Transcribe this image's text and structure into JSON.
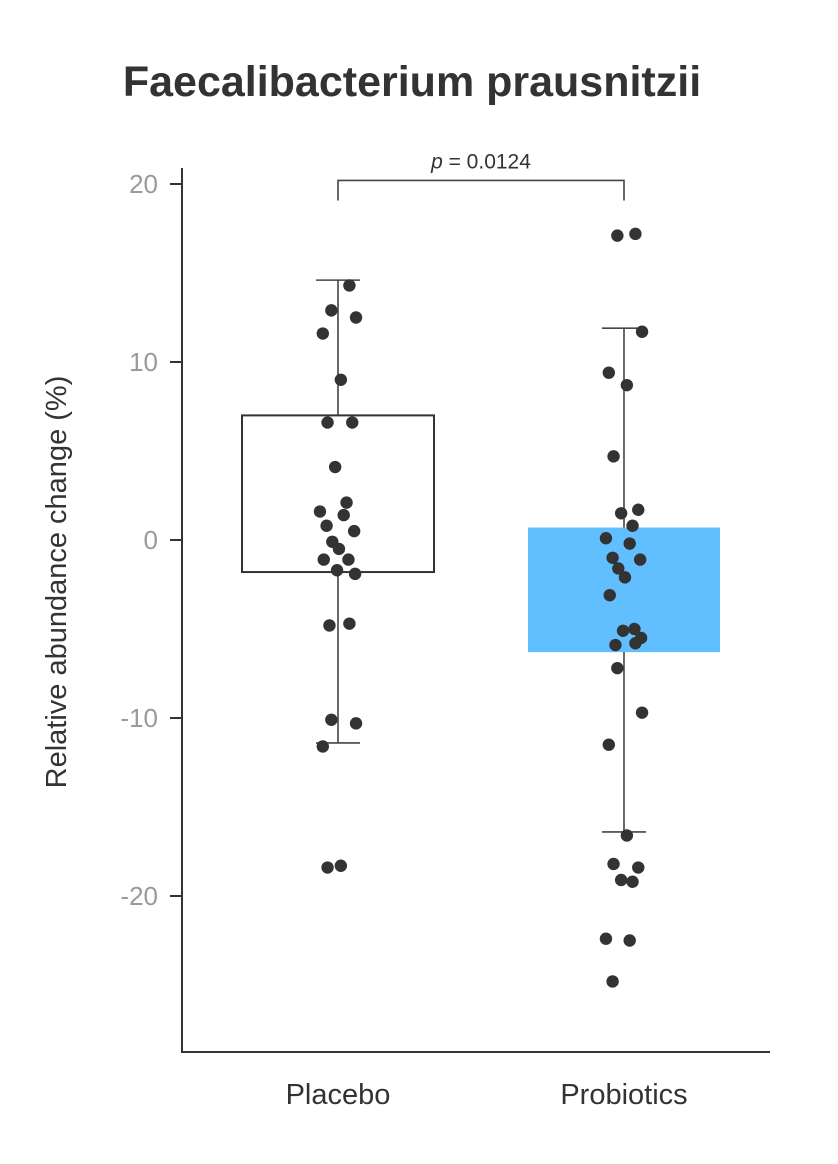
{
  "chart_data": {
    "type": "box",
    "title": "Faecalibacterium prausnitzii",
    "ylabel": "Relative abundance change (%)",
    "xlabel": "",
    "ylim": [
      -28.5,
      21
    ],
    "yticks": [
      20,
      10,
      0,
      -10,
      -20
    ],
    "ytick_labels": [
      "20",
      "10",
      "0",
      "-10",
      "-20"
    ],
    "categories": [
      "Placebo",
      "Probiotics"
    ],
    "groups": [
      {
        "name": "Placebo",
        "q1": -1.8,
        "q3": 7.0,
        "whisker_low": -11.4,
        "whisker_high": 14.6,
        "box_color": "#ffffff",
        "box_stroke": "#333333",
        "points": [
          14.3,
          12.9,
          12.5,
          11.6,
          9.0,
          6.6,
          6.6,
          4.1,
          2.1,
          1.6,
          1.4,
          0.8,
          0.5,
          -0.1,
          -0.5,
          -1.1,
          -1.1,
          -1.7,
          -1.9,
          -4.8,
          -4.7,
          -10.1,
          -10.3,
          -11.6,
          -18.3,
          -18.4
        ]
      },
      {
        "name": "Probiotics",
        "q1": -6.3,
        "q3": 0.7,
        "whisker_low": -16.4,
        "whisker_high": 11.9,
        "box_color": "#62bfff",
        "box_stroke": "none",
        "points": [
          17.2,
          17.1,
          11.7,
          9.4,
          8.7,
          4.7,
          1.7,
          1.5,
          0.8,
          0.1,
          -0.2,
          -1.0,
          -1.1,
          -1.6,
          -2.1,
          -3.1,
          -5.0,
          -5.1,
          -5.5,
          -5.9,
          -5.8,
          -7.2,
          -9.7,
          -11.5,
          -16.6,
          -18.2,
          -18.4,
          -19.1,
          -19.2,
          -22.4,
          -22.5,
          -24.8
        ]
      }
    ],
    "significance": {
      "p_symbol": "p",
      "p_rest": " = 0.0124",
      "between": [
        "Placebo",
        "Probiotics"
      ]
    },
    "colors": {
      "axis": "#333333",
      "points": "#333333",
      "highlight_box": "#62bfff",
      "tick_text": "#9a9a9a"
    },
    "grid": false,
    "legend": "none"
  }
}
